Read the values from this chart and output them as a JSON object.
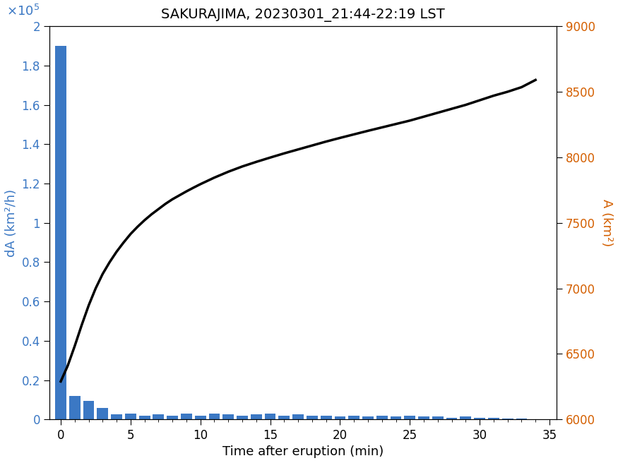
{
  "title": "SAKURAJIMA, 20230301_21:44-22:19 LST",
  "xlabel": "Time after eruption (min)",
  "ylabel_left": "dA (km²/h)",
  "ylabel_right": "A (km²)",
  "bar_positions": [
    0,
    1,
    2,
    3,
    4,
    5,
    6,
    7,
    8,
    9,
    10,
    11,
    12,
    13,
    14,
    15,
    16,
    17,
    18,
    19,
    20,
    21,
    22,
    23,
    24,
    25,
    26,
    27,
    28,
    29,
    30,
    31,
    32,
    33,
    34
  ],
  "bar_values": [
    190000,
    12000,
    9500,
    6000,
    2500,
    3000,
    2000,
    2500,
    2000,
    3000,
    2000,
    3000,
    2500,
    2000,
    2500,
    3000,
    2000,
    2500,
    2000,
    2000,
    1500,
    2000,
    1500,
    2000,
    1500,
    2000,
    1500,
    1500,
    1000,
    1500,
    1000,
    1000,
    500,
    300,
    200
  ],
  "line_x": [
    0,
    0.5,
    1,
    1.5,
    2,
    2.5,
    3,
    3.5,
    4,
    4.5,
    5,
    5.5,
    6,
    6.5,
    7,
    7.5,
    8,
    8.5,
    9,
    9.5,
    10,
    11,
    12,
    13,
    14,
    15,
    16,
    17,
    18,
    19,
    20,
    21,
    22,
    23,
    24,
    25,
    26,
    27,
    28,
    29,
    30,
    31,
    32,
    33,
    34
  ],
  "line_y": [
    6290,
    6410,
    6560,
    6720,
    6870,
    7000,
    7110,
    7200,
    7280,
    7350,
    7415,
    7470,
    7520,
    7565,
    7605,
    7645,
    7680,
    7710,
    7740,
    7768,
    7795,
    7845,
    7890,
    7930,
    7965,
    7998,
    8030,
    8060,
    8090,
    8120,
    8148,
    8175,
    8202,
    8228,
    8254,
    8280,
    8310,
    8340,
    8370,
    8400,
    8435,
    8470,
    8500,
    8535,
    8590
  ],
  "bar_color": "#3b78c4",
  "line_color": "#000000",
  "left_ylim": [
    0,
    200000
  ],
  "right_ylim": [
    6000,
    9000
  ],
  "xlim": [
    -0.8,
    35.5
  ],
  "xticks": [
    0,
    5,
    10,
    15,
    20,
    25,
    30,
    35
  ],
  "left_yticks_vals": [
    0,
    20000,
    40000,
    60000,
    80000,
    100000,
    120000,
    140000,
    160000,
    180000,
    200000
  ],
  "left_yticks_labels": [
    "0",
    "0.2",
    "0.4",
    "0.6",
    "0.8",
    "1",
    "1.2",
    "1.4",
    "1.6",
    "1.8",
    "2"
  ],
  "right_yticks": [
    6000,
    6500,
    7000,
    7500,
    8000,
    8500,
    9000
  ],
  "title_fontsize": 14,
  "label_fontsize": 13,
  "tick_fontsize": 12,
  "bar_width": 0.8
}
